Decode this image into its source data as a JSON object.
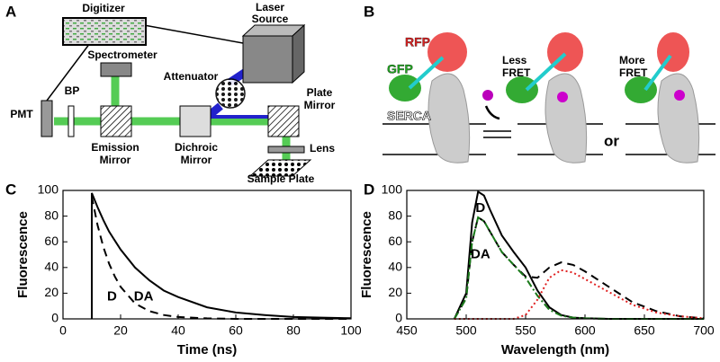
{
  "panel_labels": [
    "A",
    "B",
    "C",
    "D"
  ],
  "diagram_a": {
    "digitizer": "Digitizer",
    "laser_source": [
      "Laser",
      "Source"
    ],
    "spectrometer": "Spectrometer",
    "attenuator": "Attenuator",
    "pmt": "PMT",
    "bp": "BP",
    "plate_mirror": [
      "Plate",
      "Mirror"
    ],
    "emission_mirror": [
      "Emission",
      "Mirror"
    ],
    "dichroic_mirror": [
      "Dichroic",
      "Mirror"
    ],
    "lens": "Lens",
    "sample_plate": "Sample Plate"
  },
  "diagram_b": {
    "rfp": "RFP",
    "gfp": "GFP",
    "serca": "SERCA",
    "less_fret": [
      "Less",
      "FRET"
    ],
    "more_fret": [
      "More",
      "FRET"
    ],
    "or": "or"
  },
  "chart_data": [
    {
      "type": "line",
      "xlabel": "Time (ns)",
      "ylabel": "Fluorescence",
      "xlim": [
        0,
        100
      ],
      "xticks": [
        0,
        20,
        40,
        60,
        80,
        100
      ],
      "ylim": [
        0,
        100
      ],
      "yticks": [
        0,
        20,
        40,
        60,
        80,
        100
      ],
      "x": [
        10,
        10,
        12,
        14,
        16,
        18,
        20,
        25,
        30,
        35,
        40,
        50,
        60,
        70,
        80,
        90,
        100
      ],
      "series": [
        {
          "name": "D",
          "color": "#000000",
          "style": "solid",
          "values": [
            0,
            98,
            87,
            77,
            68,
            61,
            54,
            40,
            30,
            22,
            17,
            9,
            5,
            3,
            1.5,
            1,
            0.5
          ]
        },
        {
          "name": "DA",
          "color": "#000000",
          "style": "dashed",
          "values": [
            0,
            95,
            73,
            56,
            43,
            33,
            25,
            12,
            6,
            3,
            1.5,
            0.4,
            0,
            0,
            0,
            0,
            0
          ]
        }
      ]
    },
    {
      "type": "line",
      "xlabel": "Wavelength (nm)",
      "ylabel": "Fluorescence",
      "xlim": [
        450,
        700
      ],
      "xticks": [
        450,
        500,
        550,
        600,
        650,
        700
      ],
      "ylim": [
        0,
        100
      ],
      "yticks": [
        0,
        20,
        40,
        60,
        80,
        100
      ],
      "x": [
        490,
        500,
        505,
        510,
        515,
        520,
        530,
        540,
        550,
        560,
        570,
        580,
        590,
        600,
        620,
        640,
        660,
        680,
        700
      ],
      "series": [
        {
          "name": "D",
          "color": "#000000",
          "style": "solid",
          "values": [
            0,
            20,
            75,
            99,
            96,
            85,
            65,
            52,
            40,
            22,
            9,
            3,
            1,
            0.5,
            0,
            0,
            0,
            0,
            0
          ]
        },
        {
          "name": "DA",
          "color": "#000000",
          "style": "dashed",
          "values": [
            0,
            16,
            60,
            79,
            76,
            68,
            52,
            42,
            33,
            32,
            40,
            44,
            42,
            37,
            25,
            13,
            6,
            2,
            0.5
          ]
        },
        {
          "color": "#1a7a1a",
          "style": "dashdot",
          "values": [
            0,
            16,
            60,
            79,
            76,
            68,
            52,
            42,
            32,
            18,
            7,
            2.5,
            1,
            0.4,
            0,
            0,
            0,
            0,
            0
          ]
        },
        {
          "color": "#e02020",
          "style": "dotted",
          "values": [
            0,
            0,
            0,
            0,
            0,
            0,
            0,
            0,
            3,
            15,
            32,
            38,
            36,
            31,
            21,
            11,
            5,
            2,
            0.5
          ]
        }
      ]
    }
  ]
}
